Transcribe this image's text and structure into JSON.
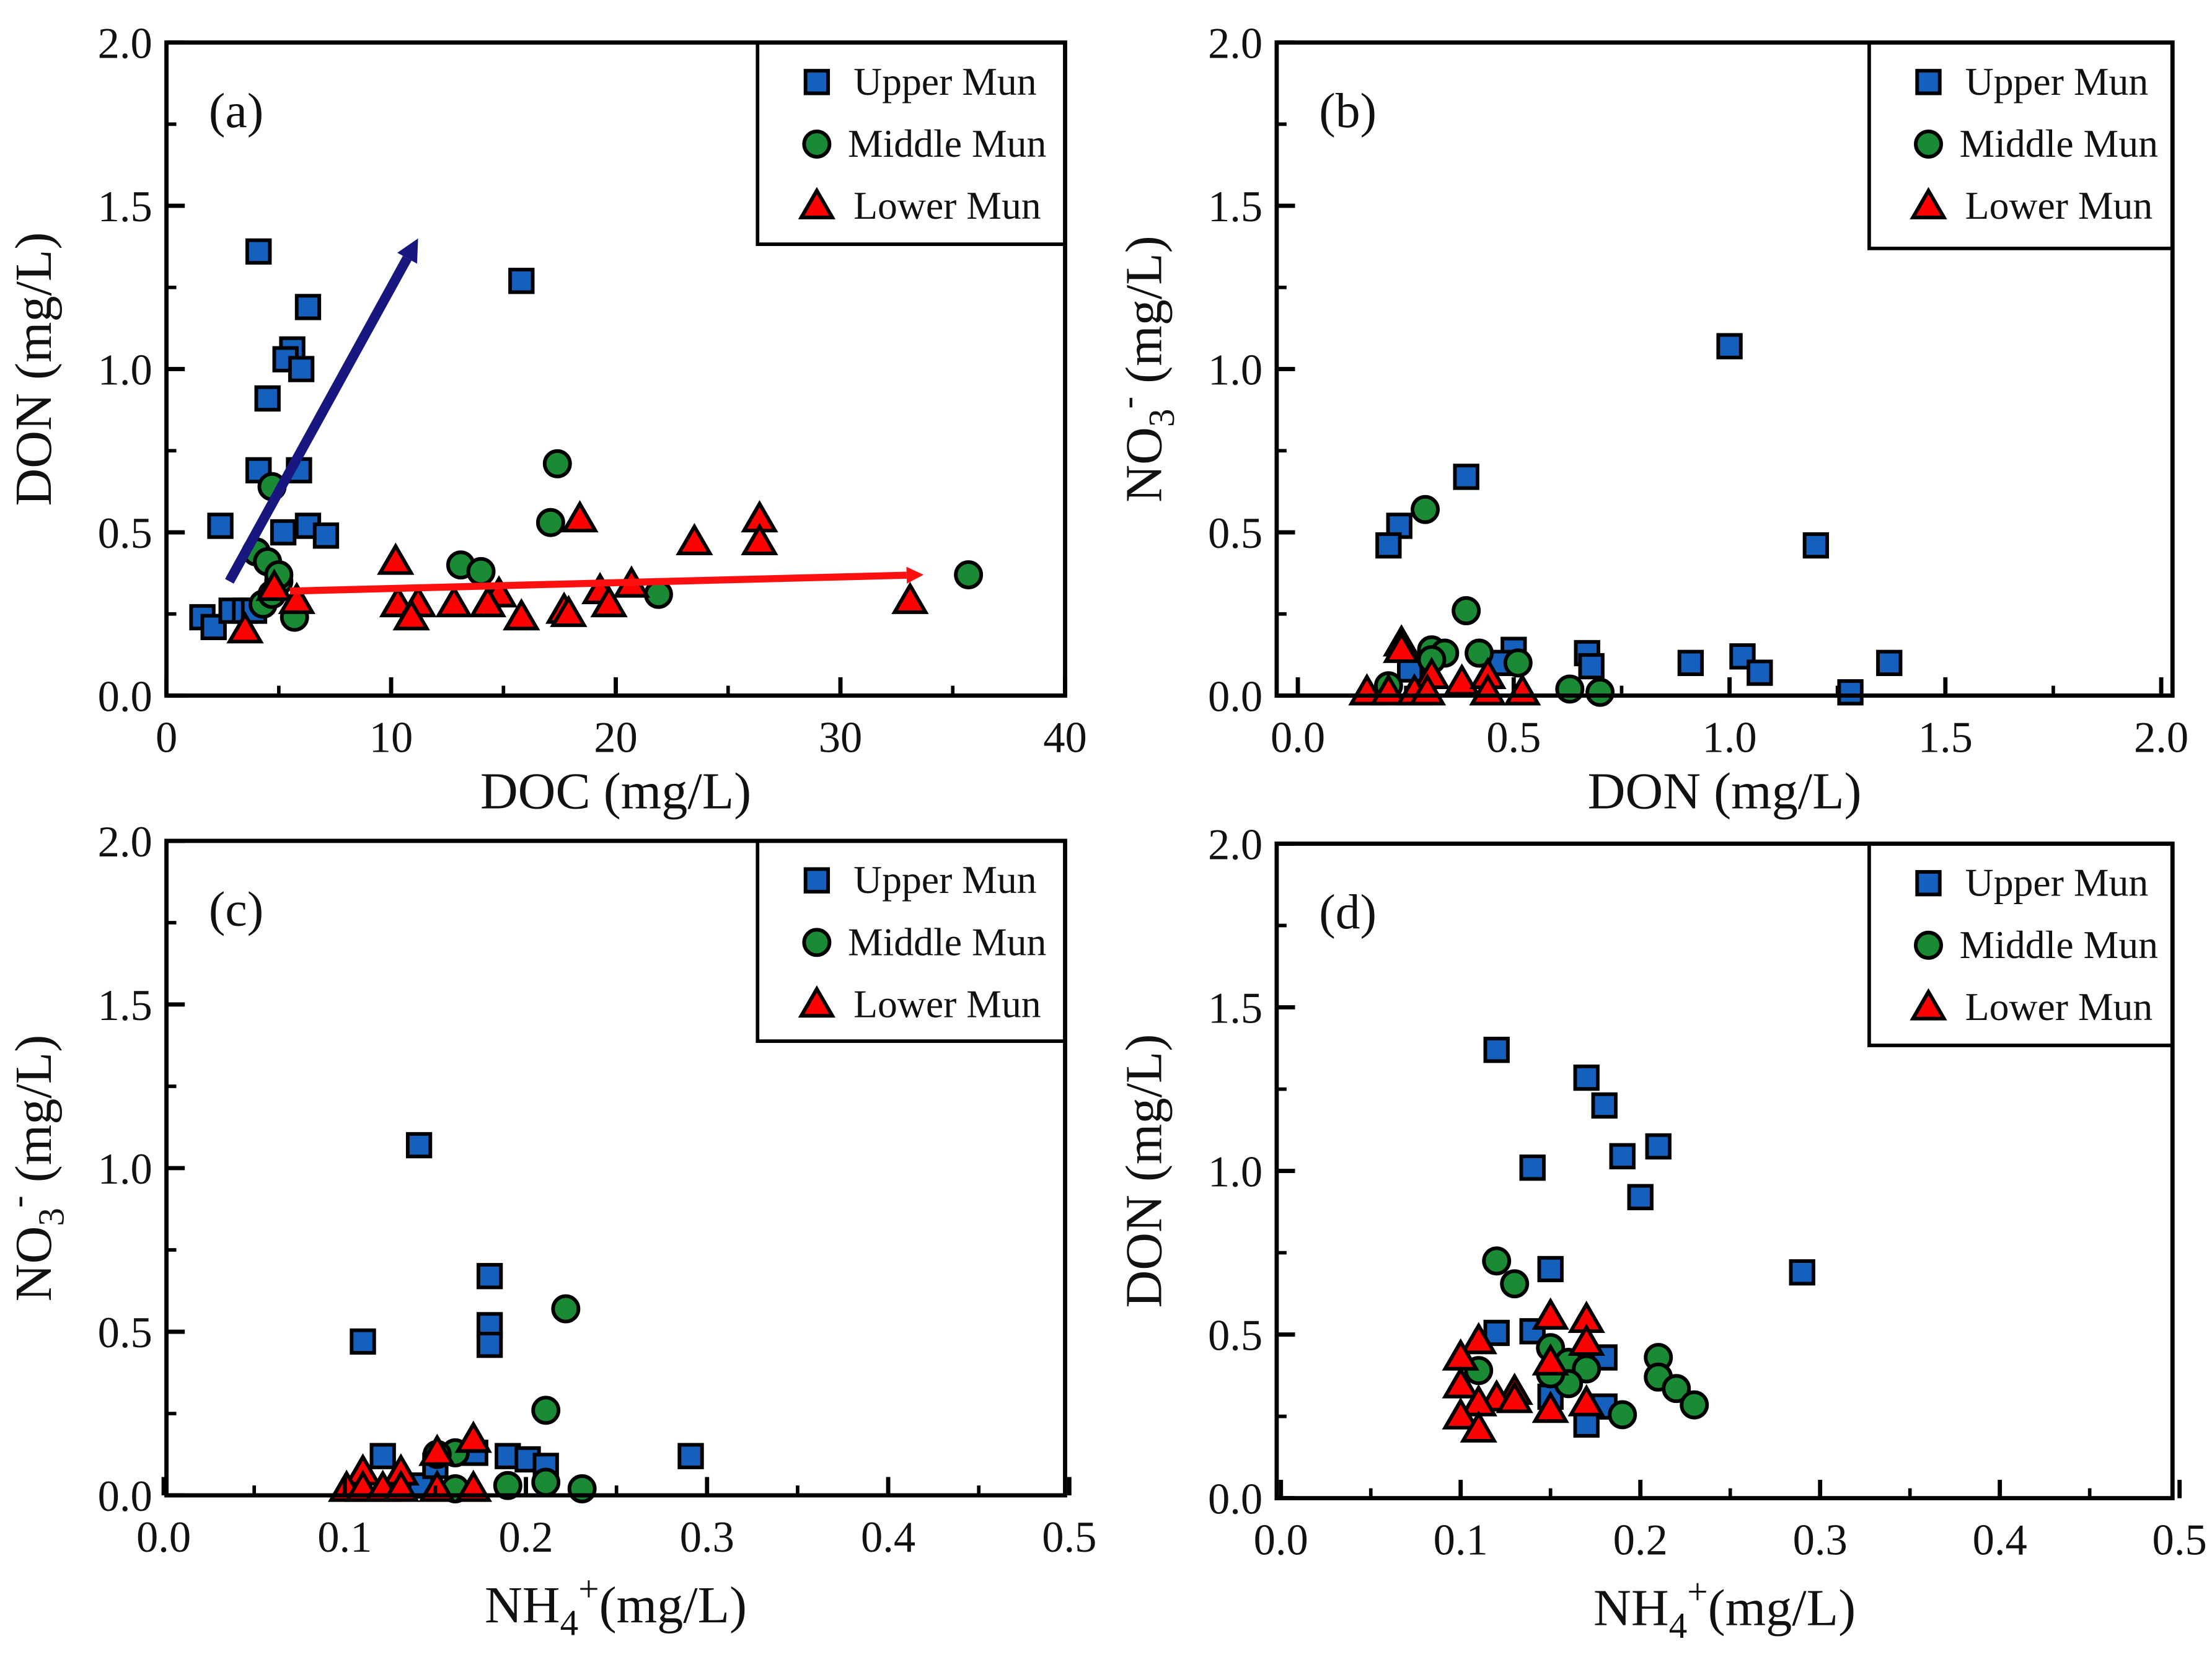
{
  "colors": {
    "upper": "#1560bd",
    "middle": "#1b8a34",
    "lower": "#ff0000",
    "arrow_blue": "#17177f",
    "arrow_red": "#ff1010"
  },
  "chart_data": [
    {
      "type": "scatter",
      "panel_label": "(a)",
      "xlabel": {
        "base": "DOC",
        "sub": "",
        "sup": "",
        "unit": "  (mg/L)"
      },
      "ylabel": {
        "base": "DON",
        "sub": "",
        "sup": "",
        "unit": "  (mg/L)"
      },
      "xlim": [
        0,
        40
      ],
      "ylim": [
        0,
        2.0
      ],
      "x_ticks": [
        {
          "v": 0,
          "label": "0"
        },
        {
          "v": 10,
          "label": "10"
        },
        {
          "v": 20,
          "label": "20"
        },
        {
          "v": 30,
          "label": "30"
        },
        {
          "v": 40,
          "label": "40"
        }
      ],
      "y_ticks": [
        {
          "v": 0,
          "label": "0.0"
        },
        {
          "v": 0.5,
          "label": "0.5"
        },
        {
          "v": 1.0,
          "label": "1.0"
        },
        {
          "v": 1.5,
          "label": "1.5"
        },
        {
          "v": 2.0,
          "label": "2.0"
        }
      ],
      "x_minor": 5,
      "y_minor": 0.25,
      "legend": "top-right",
      "series": [
        {
          "name": "Upper Mun",
          "marker": "square",
          "points": [
            [
              4.1,
              1.36
            ],
            [
              15.8,
              1.27
            ],
            [
              6.3,
              1.19
            ],
            [
              5.6,
              1.06
            ],
            [
              5.3,
              1.03
            ],
            [
              6.0,
              1.0
            ],
            [
              4.5,
              0.91
            ],
            [
              4.1,
              0.69
            ],
            [
              5.9,
              0.69
            ],
            [
              2.4,
              0.52
            ],
            [
              5.2,
              0.5
            ],
            [
              6.3,
              0.52
            ],
            [
              7.1,
              0.49
            ],
            [
              1.6,
              0.24
            ],
            [
              2.1,
              0.21
            ],
            [
              2.9,
              0.26
            ],
            [
              3.5,
              0.26
            ],
            [
              3.9,
              0.26
            ]
          ]
        },
        {
          "name": "Middle Mun",
          "marker": "circle",
          "points": [
            [
              4.7,
              0.64
            ],
            [
              17.4,
              0.71
            ],
            [
              17.1,
              0.53
            ],
            [
              4.0,
              0.44
            ],
            [
              4.5,
              0.41
            ],
            [
              5.0,
              0.35
            ],
            [
              5.0,
              0.37
            ],
            [
              4.3,
              0.28
            ],
            [
              5.7,
              0.24
            ],
            [
              13.1,
              0.4
            ],
            [
              14.0,
              0.38
            ],
            [
              21.9,
              0.31
            ],
            [
              35.7,
              0.37
            ],
            [
              4.7,
              0.31
            ]
          ]
        },
        {
          "name": "Lower Mun",
          "marker": "triangle",
          "points": [
            [
              3.5,
              0.2
            ],
            [
              4.8,
              0.33
            ],
            [
              5.8,
              0.29
            ],
            [
              10.2,
              0.41
            ],
            [
              10.3,
              0.28
            ],
            [
              11.2,
              0.28
            ],
            [
              10.9,
              0.24
            ],
            [
              12.8,
              0.28
            ],
            [
              14.8,
              0.31
            ],
            [
              14.3,
              0.28
            ],
            [
              15.8,
              0.24
            ],
            [
              17.7,
              0.26
            ],
            [
              17.9,
              0.25
            ],
            [
              18.4,
              0.54
            ],
            [
              19.3,
              0.32
            ],
            [
              19.7,
              0.28
            ],
            [
              20.7,
              0.34
            ],
            [
              23.5,
              0.47
            ],
            [
              26.4,
              0.54
            ],
            [
              26.4,
              0.47
            ],
            [
              33.1,
              0.29
            ]
          ]
        }
      ],
      "arrows": [
        {
          "color_key": "arrow_blue",
          "from": [
            2.8,
            0.35
          ],
          "to": [
            11.2,
            1.4
          ]
        },
        {
          "color_key": "arrow_red",
          "from": [
            5.5,
            0.32
          ],
          "to": [
            33.7,
            0.37
          ]
        }
      ]
    },
    {
      "type": "scatter",
      "panel_label": "(b)",
      "xlabel": {
        "base": "DON",
        "sub": "",
        "sup": "",
        "unit": "  (mg/L)"
      },
      "ylabel": {
        "base": "NO",
        "sub": "3",
        "sup": "-",
        "unit": " (mg/L)"
      },
      "xlim": [
        0,
        2.0
      ],
      "ylim": [
        0,
        2.0
      ],
      "x_ticks": [
        {
          "v": 0,
          "label": "0.0"
        },
        {
          "v": 0.5,
          "label": "0.5"
        },
        {
          "v": 1.0,
          "label": "1.0"
        },
        {
          "v": 1.5,
          "label": "1.5"
        },
        {
          "v": 2.0,
          "label": "2.0"
        }
      ],
      "y_ticks": [
        {
          "v": 0,
          "label": "0.0"
        },
        {
          "v": 0.5,
          "label": "0.5"
        },
        {
          "v": 1.0,
          "label": "1.0"
        },
        {
          "v": 1.5,
          "label": "1.5"
        },
        {
          "v": 2.0,
          "label": "2.0"
        }
      ],
      "x_minor": 0.25,
      "y_minor": 0.25,
      "legend": "top-right",
      "series": [
        {
          "name": "Upper Mun",
          "marker": "square",
          "points": [
            [
              1.0,
              1.07
            ],
            [
              0.39,
              0.67
            ],
            [
              0.235,
              0.52
            ],
            [
              0.21,
              0.46
            ],
            [
              1.2,
              0.46
            ],
            [
              0.91,
              0.1
            ],
            [
              1.03,
              0.12
            ],
            [
              1.07,
              0.07
            ],
            [
              1.28,
              0.01
            ],
            [
              1.37,
              0.1
            ],
            [
              0.67,
              0.13
            ],
            [
              0.68,
              0.09
            ],
            [
              0.5,
              0.14
            ],
            [
              0.47,
              0.1
            ],
            [
              0.26,
              0.08
            ]
          ]
        },
        {
          "name": "Middle Mun",
          "marker": "circle",
          "points": [
            [
              0.295,
              0.57
            ],
            [
              0.39,
              0.26
            ],
            [
              0.31,
              0.14
            ],
            [
              0.34,
              0.13
            ],
            [
              0.31,
              0.11
            ],
            [
              0.42,
              0.13
            ],
            [
              0.51,
              0.1
            ],
            [
              0.63,
              0.02
            ],
            [
              0.7,
              0.01
            ],
            [
              0.21,
              0.03
            ]
          ]
        },
        {
          "name": "Lower Mun",
          "marker": "triangle",
          "points": [
            [
              0.24,
              0.16
            ],
            [
              0.24,
              0.14
            ],
            [
              0.31,
              0.06
            ],
            [
              0.38,
              0.04
            ],
            [
              0.44,
              0.06
            ],
            [
              0.52,
              0.01
            ],
            [
              0.16,
              0.01
            ],
            [
              0.21,
              0.01
            ],
            [
              0.27,
              0.01
            ],
            [
              0.3,
              0.01
            ],
            [
              0.44,
              0.01
            ]
          ]
        }
      ]
    },
    {
      "type": "scatter",
      "panel_label": "(c)",
      "xlabel": {
        "base": "NH",
        "sub": "4",
        "sup": "+",
        "unit": "(mg/L)"
      },
      "ylabel": {
        "base": "NO",
        "sub": "3",
        "sup": "-",
        "unit": " (mg/L)"
      },
      "xlim": [
        0,
        0.5
      ],
      "ylim": [
        0,
        2.0
      ],
      "x_ticks": [
        {
          "v": 0,
          "label": "0.0"
        },
        {
          "v": 0.1,
          "label": "0.1"
        },
        {
          "v": 0.2,
          "label": "0.2"
        },
        {
          "v": 0.3,
          "label": "0.3"
        },
        {
          "v": 0.4,
          "label": "0.4"
        },
        {
          "v": 0.5,
          "label": "0.5"
        }
      ],
      "y_ticks": [
        {
          "v": 0,
          "label": "0.0"
        },
        {
          "v": 0.5,
          "label": "0.5"
        },
        {
          "v": 1.0,
          "label": "1.0"
        },
        {
          "v": 1.5,
          "label": "1.5"
        },
        {
          "v": 2.0,
          "label": "2.0"
        }
      ],
      "x_minor": 0.05,
      "y_minor": 0.25,
      "legend": "top-right",
      "series": [
        {
          "name": "Upper Mun",
          "marker": "square",
          "points": [
            [
              0.141,
              1.07
            ],
            [
              0.18,
              0.67
            ],
            [
              0.18,
              0.52
            ],
            [
              0.18,
              0.46
            ],
            [
              0.11,
              0.47
            ],
            [
              0.121,
              0.12
            ],
            [
              0.19,
              0.12
            ],
            [
              0.201,
              0.11
            ],
            [
              0.211,
              0.09
            ],
            [
              0.291,
              0.12
            ],
            [
              0.172,
              0.13
            ],
            [
              0.142,
              0.03
            ],
            [
              0.15,
              0.09
            ]
          ]
        },
        {
          "name": "Middle Mun",
          "marker": "circle",
          "points": [
            [
              0.222,
              0.57
            ],
            [
              0.211,
              0.26
            ],
            [
              0.161,
              0.13
            ],
            [
              0.151,
              0.125
            ],
            [
              0.19,
              0.03
            ],
            [
              0.211,
              0.04
            ],
            [
              0.231,
              0.02
            ],
            [
              0.161,
              0.02
            ]
          ]
        },
        {
          "name": "Lower Mun",
          "marker": "triangle",
          "points": [
            [
              0.171,
              0.17
            ],
            [
              0.151,
              0.13
            ],
            [
              0.11,
              0.07
            ],
            [
              0.131,
              0.07
            ],
            [
              0.101,
              0.02
            ],
            [
              0.11,
              0.02
            ],
            [
              0.121,
              0.02
            ],
            [
              0.131,
              0.02
            ],
            [
              0.151,
              0.02
            ],
            [
              0.171,
              0.02
            ]
          ]
        }
      ]
    },
    {
      "type": "scatter",
      "panel_label": "(d)",
      "xlabel": {
        "base": "NH",
        "sub": "4",
        "sup": "+",
        "unit": "(mg/L)"
      },
      "ylabel": {
        "base": "DON",
        "sub": "",
        "sup": "",
        "unit": "  (mg/L)"
      },
      "xlim": [
        0,
        0.5
      ],
      "ylim": [
        0,
        2.0
      ],
      "x_ticks": [
        {
          "v": 0,
          "label": "0.0"
        },
        {
          "v": 0.1,
          "label": "0.1"
        },
        {
          "v": 0.2,
          "label": "0.2"
        },
        {
          "v": 0.3,
          "label": "0.3"
        },
        {
          "v": 0.4,
          "label": "0.4"
        },
        {
          "v": 0.5,
          "label": "0.5"
        }
      ],
      "y_ticks": [
        {
          "v": 0,
          "label": "0.0"
        },
        {
          "v": 0.5,
          "label": "0.5"
        },
        {
          "v": 1.0,
          "label": "1.0"
        },
        {
          "v": 1.5,
          "label": "1.5"
        },
        {
          "v": 2.0,
          "label": "2.0"
        }
      ],
      "x_minor": 0.05,
      "y_minor": 0.25,
      "legend": "top-right",
      "series": [
        {
          "name": "Upper Mun",
          "marker": "square",
          "points": [
            [
              0.12,
              1.37
            ],
            [
              0.17,
              1.285
            ],
            [
              0.18,
              1.2
            ],
            [
              0.19,
              1.045
            ],
            [
              0.21,
              1.075
            ],
            [
              0.14,
              1.01
            ],
            [
              0.2,
              0.92
            ],
            [
              0.29,
              0.69
            ],
            [
              0.15,
              0.7
            ],
            [
              0.12,
              0.505
            ],
            [
              0.14,
              0.51
            ],
            [
              0.18,
              0.43
            ],
            [
              0.18,
              0.28
            ],
            [
              0.17,
              0.225
            ],
            [
              0.15,
              0.31
            ]
          ]
        },
        {
          "name": "Middle Mun",
          "marker": "circle",
          "points": [
            [
              0.12,
              0.725
            ],
            [
              0.13,
              0.655
            ],
            [
              0.11,
              0.39
            ],
            [
              0.15,
              0.46
            ],
            [
              0.16,
              0.415
            ],
            [
              0.17,
              0.395
            ],
            [
              0.16,
              0.35
            ],
            [
              0.15,
              0.38
            ],
            [
              0.21,
              0.43
            ],
            [
              0.21,
              0.37
            ],
            [
              0.22,
              0.335
            ],
            [
              0.23,
              0.285
            ],
            [
              0.19,
              0.255
            ]
          ]
        },
        {
          "name": "Lower Mun",
          "marker": "triangle",
          "points": [
            [
              0.15,
              0.555
            ],
            [
              0.17,
              0.545
            ],
            [
              0.17,
              0.475
            ],
            [
              0.15,
              0.415
            ],
            [
              0.11,
              0.48
            ],
            [
              0.1,
              0.43
            ],
            [
              0.1,
              0.345
            ],
            [
              0.13,
              0.325
            ],
            [
              0.12,
              0.305
            ],
            [
              0.11,
              0.29
            ],
            [
              0.1,
              0.25
            ],
            [
              0.11,
              0.21
            ],
            [
              0.15,
              0.27
            ],
            [
              0.17,
              0.29
            ],
            [
              0.13,
              0.3
            ]
          ]
        }
      ]
    }
  ]
}
